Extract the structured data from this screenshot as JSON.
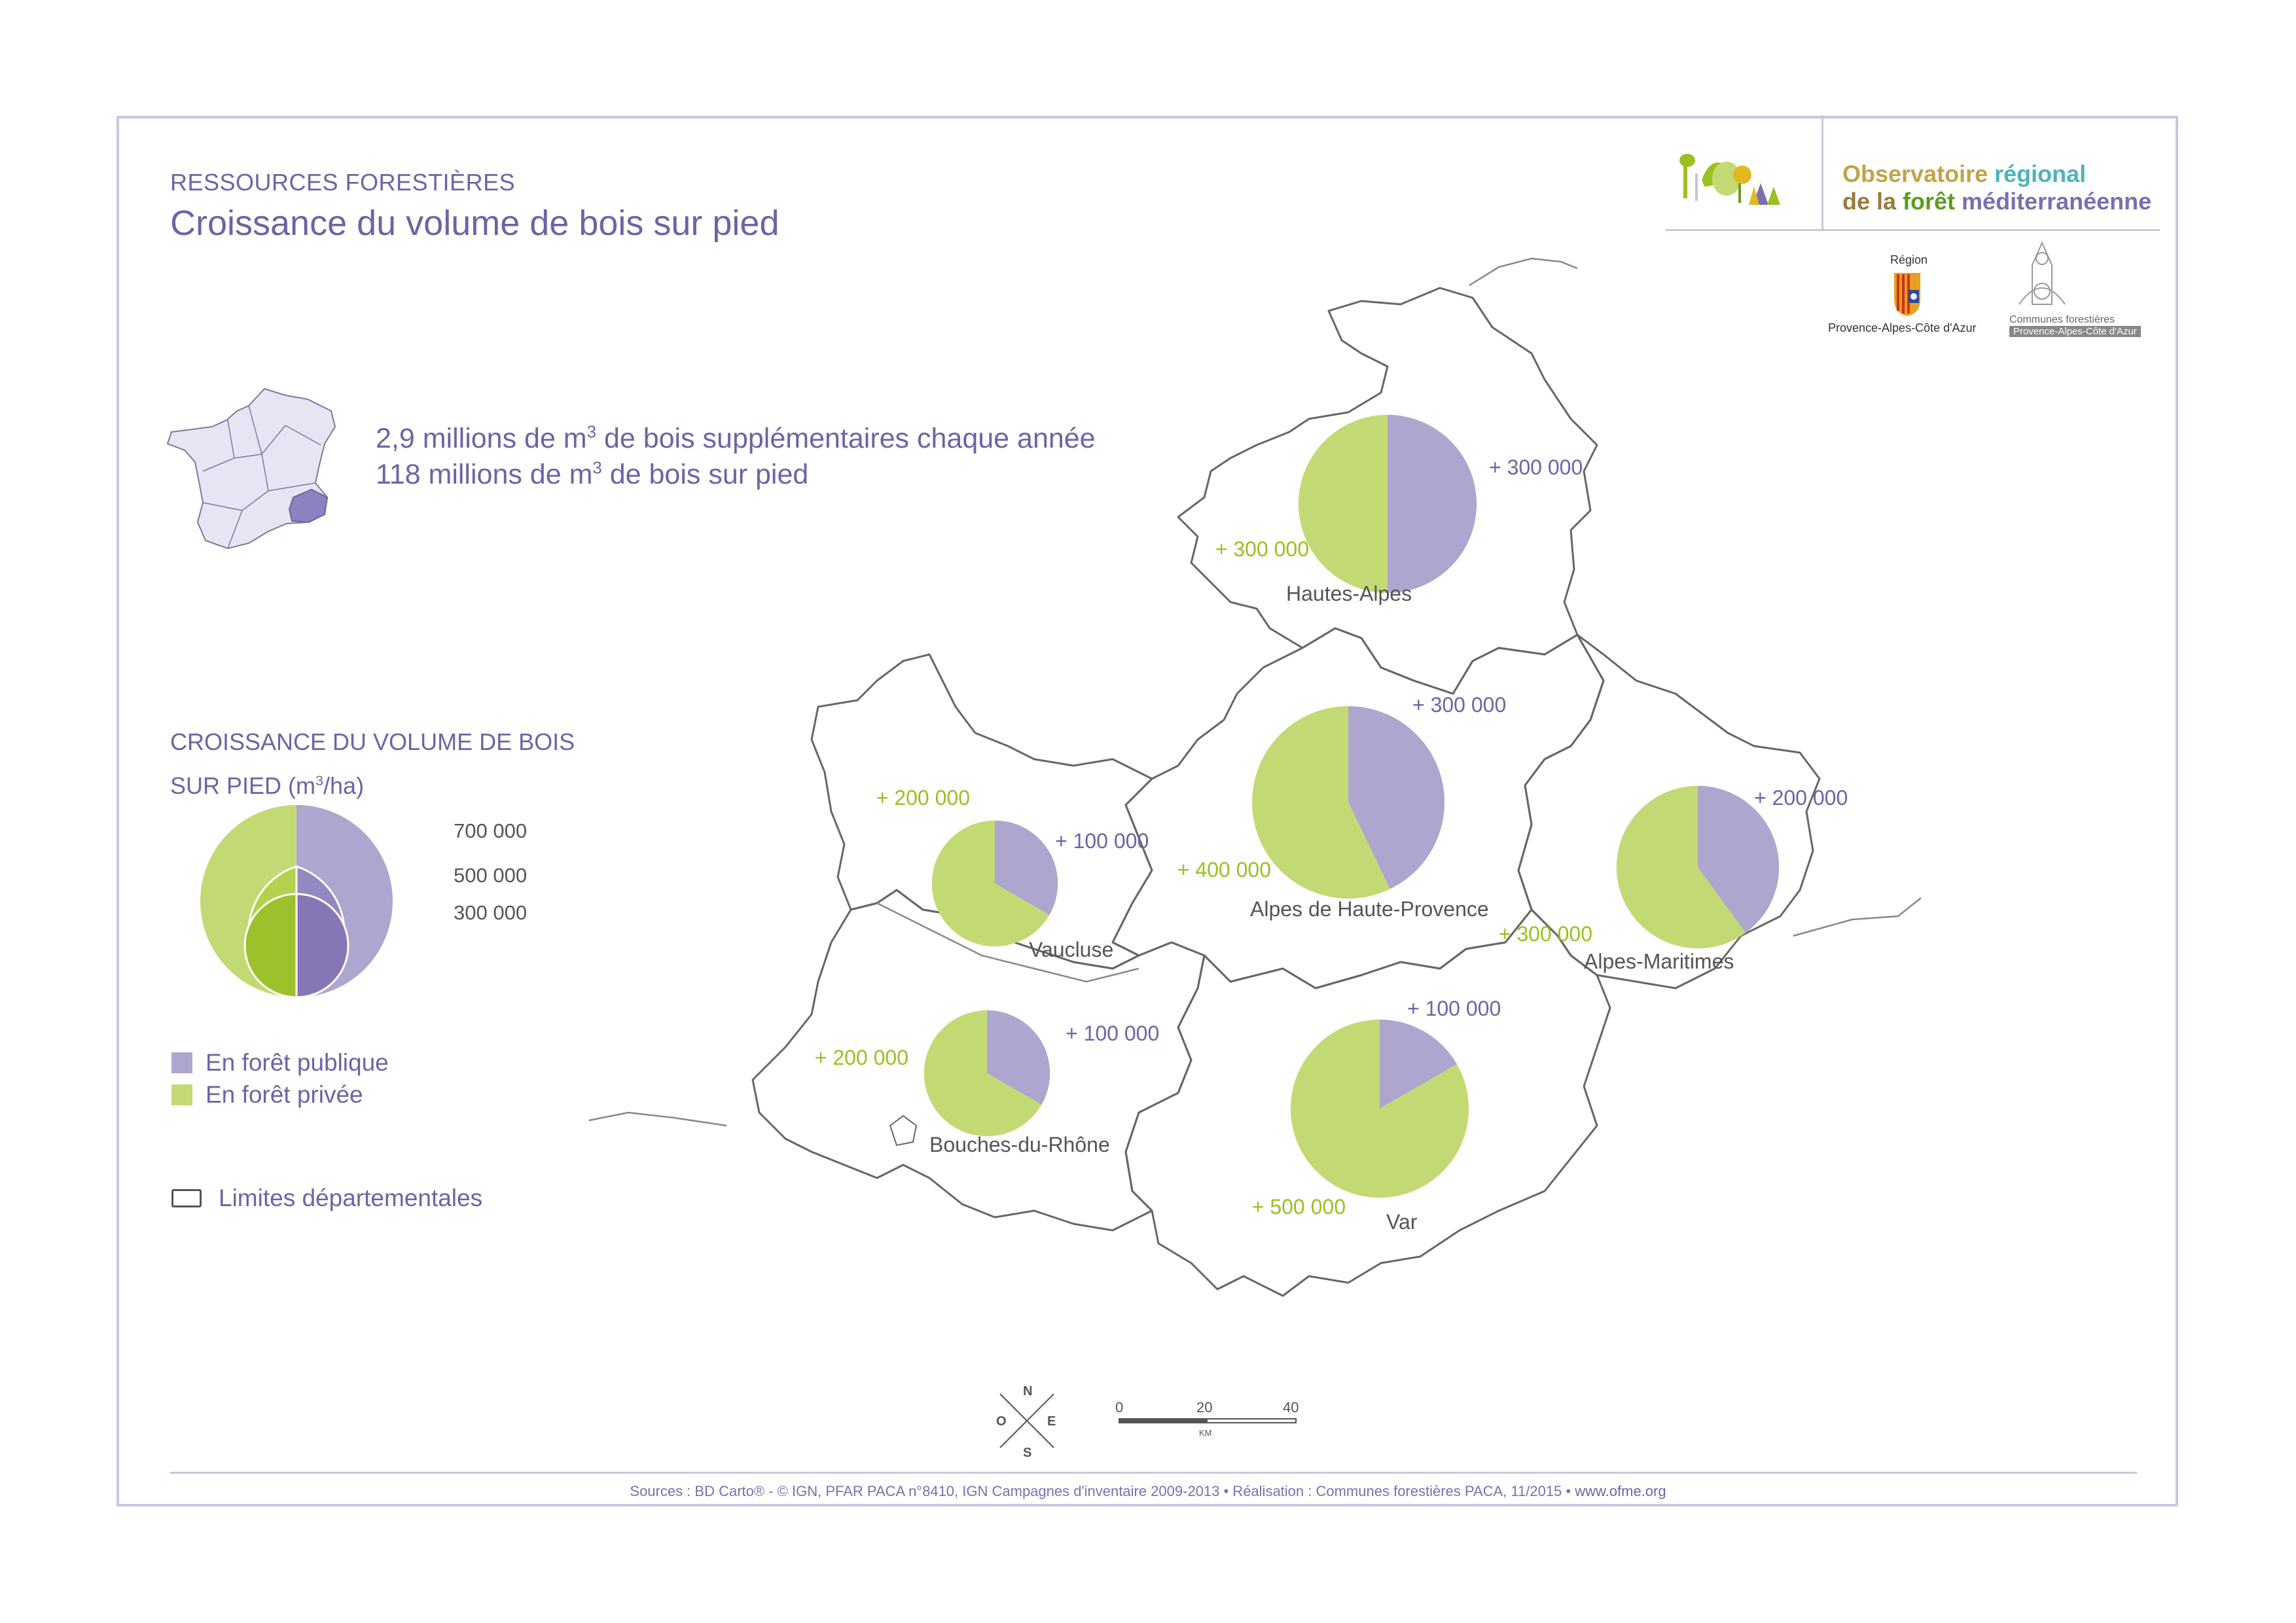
{
  "header": {
    "kicker": "RESSOURCES FORESTIÈRES",
    "title": "Croissance du volume de bois sur pied"
  },
  "stats": {
    "line1_pre": "2,9 millions de m",
    "line1_sup": "3",
    "line1_post": " de bois supplémentaires chaque année",
    "line2_pre": "118 millions de m",
    "line2_sup": "3",
    "line2_post": " de bois sur pied"
  },
  "legend": {
    "title_line1": "CROISSANCE DU VOLUME DE BOIS",
    "title_line2_pre": "SUR PIED (m",
    "title_line2_sup": "3",
    "title_line2_post": "/ha)",
    "size_values": [
      "700 000",
      "500 000",
      "300 000"
    ],
    "public_label": "En forêt publique",
    "private_label": "En forêt privée",
    "limits_label": "Limites départementales",
    "public_color": "#ada6cf",
    "private_color": "#c3da74"
  },
  "brand": {
    "line1_a": "Observatoire ",
    "line1_b": "régional",
    "line2_a": "de la ",
    "line2_b": "forêt ",
    "line2_c": "méditerranéenne",
    "region_label": "Région",
    "region_name": "Provence-Alpes-Côte d'Azur",
    "cf_name": "Communes forestières",
    "cf_sub": "Provence-Alpes-Côte d'Azur"
  },
  "compass": {
    "n": "N",
    "s": "S",
    "e": "E",
    "o": "O"
  },
  "scale": {
    "t0": "0",
    "t1": "20",
    "t2": "40",
    "unit": "KM"
  },
  "footer": {
    "sources": "Sources : BD Carto® - © IGN, PFAR PACA n°8410,  IGN Campagnes d'inventaire 2009-2013 • Réalisation : Communes forestières PACA, 11/2015 • ",
    "url": "www.ofme.org"
  },
  "chart_data": {
    "type": "pie",
    "unit": "m3",
    "series_names": [
      "En forêt publique",
      "En forêt privée"
    ],
    "departments": [
      {
        "name": "Hautes-Alpes",
        "public": 300000,
        "private": 300000,
        "public_label": "+ 300 000",
        "private_label": "+ 300 000"
      },
      {
        "name": "Alpes de Haute-Provence",
        "public": 300000,
        "private": 400000,
        "public_label": "+ 300 000",
        "private_label": "+ 400 000"
      },
      {
        "name": "Vaucluse",
        "public": 100000,
        "private": 200000,
        "public_label": "+ 100 000",
        "private_label": "+ 200 000"
      },
      {
        "name": "Alpes-Maritimes",
        "public": 200000,
        "private": 300000,
        "public_label": "+ 200 000",
        "private_label": "+ 300 000"
      },
      {
        "name": "Bouches-du-Rhône",
        "public": 100000,
        "private": 200000,
        "public_label": "+ 100 000",
        "private_label": "+ 200 000"
      },
      {
        "name": "Var",
        "public": 100000,
        "private": 500000,
        "public_label": "+ 100 000",
        "private_label": "+ 500 000"
      }
    ]
  }
}
